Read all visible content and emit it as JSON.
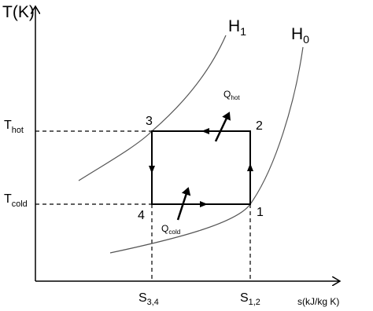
{
  "diagram": {
    "y_axis_label": "T(K)",
    "x_axis_label": "s(kJ/kg K)",
    "curves": [
      {
        "base": "H",
        "sub": "1"
      },
      {
        "base": "H",
        "sub": "0"
      }
    ],
    "levels": [
      {
        "base": "T",
        "sub": "hot"
      },
      {
        "base": "T",
        "sub": "cold"
      }
    ],
    "entropies": [
      {
        "base": "S",
        "sub": "3,4"
      },
      {
        "base": "S",
        "sub": "1,2"
      }
    ],
    "states": [
      "1",
      "2",
      "3",
      "4"
    ],
    "heats": [
      {
        "base": "Q",
        "sub": "hot"
      },
      {
        "base": "Q",
        "sub": "cold"
      }
    ]
  }
}
